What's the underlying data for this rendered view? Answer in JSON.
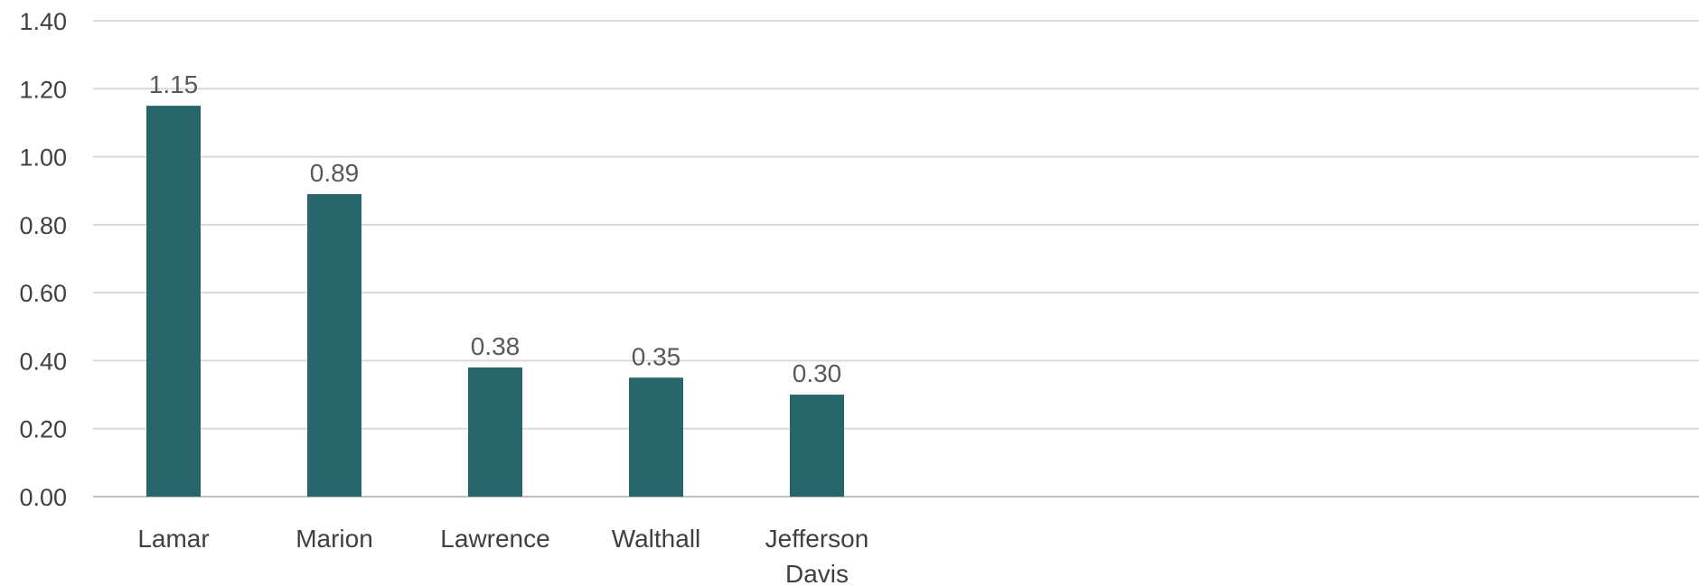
{
  "chart_data": {
    "type": "bar",
    "categories": [
      "Lamar",
      "Marion",
      "Lawrence",
      "Walthall",
      "Jefferson Davis"
    ],
    "category_lines": [
      [
        "Lamar"
      ],
      [
        "Marion"
      ],
      [
        "Lawrence"
      ],
      [
        "Walthall"
      ],
      [
        "Jefferson",
        "Davis"
      ]
    ],
    "values": [
      1.15,
      0.89,
      0.38,
      0.35,
      0.3
    ],
    "data_labels": [
      "1.15",
      "0.89",
      "0.38",
      "0.35",
      "0.30"
    ],
    "ylim": [
      0,
      1.4
    ],
    "yticks": [
      0,
      0.2,
      0.4,
      0.6,
      0.8,
      1.0,
      1.2,
      1.4
    ],
    "ytick_labels": [
      "0.00",
      "0.20",
      "0.40",
      "0.60",
      "0.80",
      "1.00",
      "1.20",
      "1.40"
    ],
    "title": "",
    "xlabel": "",
    "ylabel": "",
    "grid": true,
    "legend": "none",
    "bar_color": "#27676b",
    "grid_color": "#d9d9d9"
  }
}
